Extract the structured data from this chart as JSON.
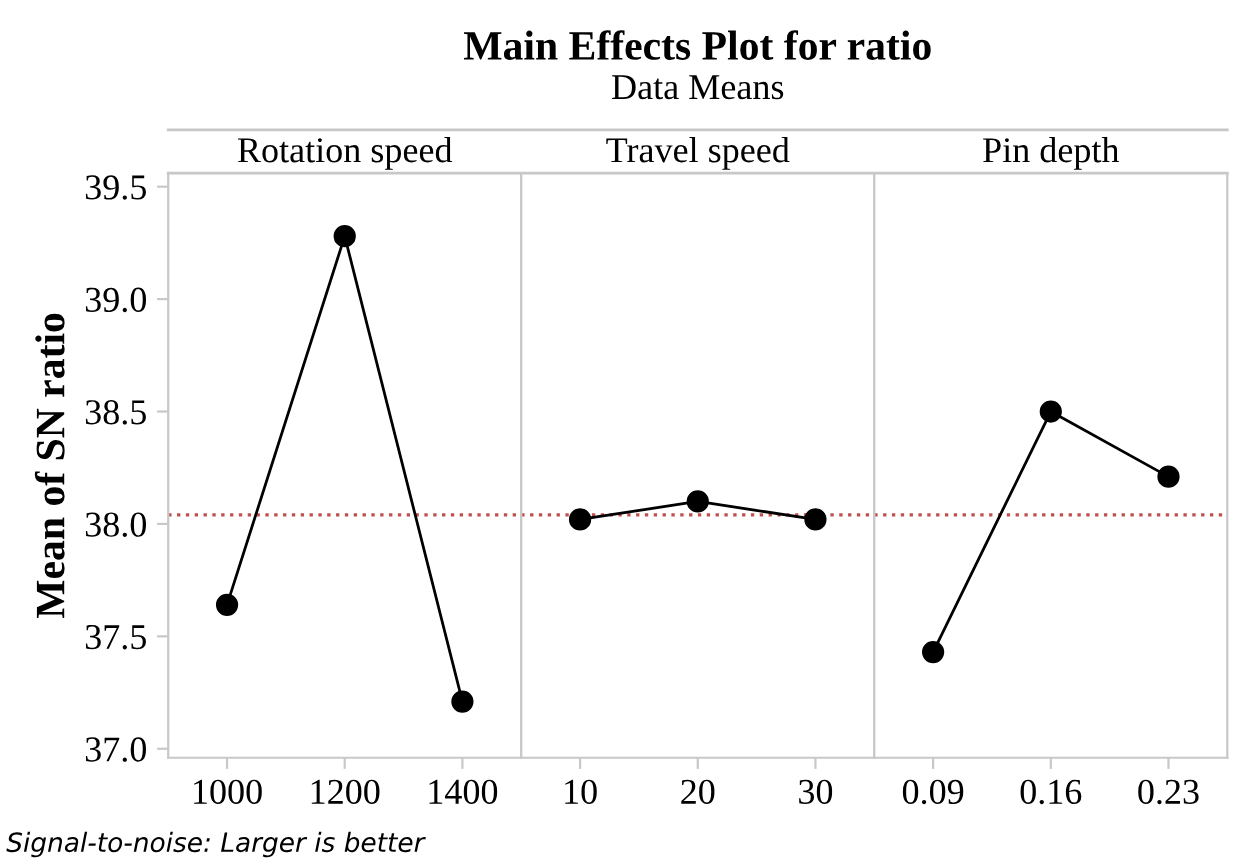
{
  "chart_data": [
    {
      "type": "line",
      "ylabel": "Mean of SN ratio",
      "xlabel": "Rotation speed",
      "annotations": [
        "Signal-to-noise: Larger is better"
      ],
      "categories": [
        "1000",
        "1200",
        "1400"
      ],
      "series": [
        {
          "color": "#000000",
          "values": [
            37.64,
            39.28,
            37.21
          ]
        }
      ],
      "ylim": [
        36.96,
        39.56
      ],
      "yticks": [
        {
          "value": 37,
          "label": "37.0"
        },
        37.5,
        {
          "value": 38,
          "label": "38.0"
        },
        38.5,
        {
          "value": 39,
          "label": "39.0"
        },
        39.5
      ],
      "ref_lines": [
        {
          "axis": "y",
          "value": 38.04,
          "color": "#c0504d",
          "line_style": "dotted"
        }
      ],
      "marker": "circle",
      "grid": false
    },
    {
      "type": "line",
      "title": "Main Effects Plot for ratio",
      "subtitle": "Data Means",
      "xlabel": "Travel speed",
      "categories": [
        "10",
        "20",
        "30"
      ],
      "series": [
        {
          "color": "#000000",
          "values": [
            38.02,
            38.1,
            38.02
          ]
        }
      ],
      "ylim": [
        36.96,
        39.56
      ],
      "tick_labels": "x",
      "ref_lines": [
        {
          "axis": "y",
          "value": 38.04,
          "color": "#c0504d",
          "line_style": "dotted"
        }
      ],
      "marker": "circle",
      "grid": false
    },
    {
      "type": "line",
      "xlabel": "Pin depth",
      "categories": [
        "0.09",
        "0.16",
        "0.23"
      ],
      "series": [
        {
          "color": "#000000",
          "values": [
            37.43,
            38.5,
            38.21
          ]
        }
      ],
      "ylim": [
        36.96,
        39.56
      ],
      "tick_labels": "x",
      "ref_lines": [
        {
          "axis": "y",
          "value": 38.04,
          "color": "#c0504d",
          "line_style": "dotted"
        }
      ],
      "marker": "circle",
      "grid": false
    }
  ]
}
